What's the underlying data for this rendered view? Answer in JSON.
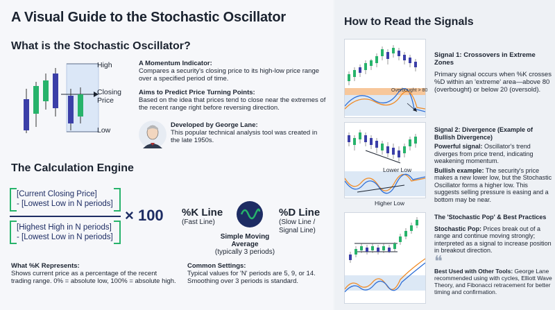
{
  "title": "A Visual Guide to the Stochastic Oscillator",
  "section_what": {
    "heading": "What is the Stochastic Oscillator?",
    "chart_labels": {
      "high": "High",
      "closing": "Closing\nPrice",
      "low": "Low"
    },
    "momentum": {
      "heading": "A Momentum Indicator:",
      "body": "Compares a security's closing price to its high-low price range over a specified period of time."
    },
    "aims": {
      "heading": "Aims to Predict Price Turning Points:",
      "body": "Based on the idea that prices tend to close near the extremes of the recent range right before reversing direction."
    },
    "developer": {
      "heading": "Developed by George Lane:",
      "body": "This popular technical analysis tool was created in the late 1950s."
    }
  },
  "section_calc": {
    "heading": "The Calculation Engine",
    "numerator": "[Current Closing Price]\n- [Lowest Low in N periods]",
    "denominator": "[Highest High in N periods]\n- [Lowest Low in N periods]",
    "multiplier": "× 100",
    "k_line": {
      "title": "%K Line",
      "sub": "(Fast Line)"
    },
    "d_line": {
      "title": "%D Line",
      "sub": "(Slow Line /\nSignal Line)"
    },
    "sma": {
      "title": "Simple Moving Average",
      "sub": "(typically 3 periods)"
    },
    "what_k": {
      "heading": "What %K Represents:",
      "body": "Shows current price as a percentage of the recent trading range. 0% = absolute low, 100% = absolute high."
    },
    "settings": {
      "heading": "Common Settings:",
      "body": "Typical values for 'N' periods are 5, 9, or 14. Smoothing over 3 periods is standard."
    }
  },
  "section_read": {
    "heading": "How to Read the Signals",
    "signal1": {
      "title": "Signal 1: Crossovers in Extreme Zones",
      "body": "Primary signal occurs when %K crosses %D within an 'extreme' area—above 80 (overbought) or below 20 (oversold).",
      "chart_label": "Overbought > 80"
    },
    "signal2": {
      "title": "Signal 2: Divergence (Example of Bullish Divergence)",
      "p1_bold": "Powerful signal:",
      "p1": " Oscillator's trend diverges from price trend, indicating weakening momentum.",
      "p2_bold": "Bullish example:",
      "p2": " The security's price makes a new lower low, but the Stochastic Oscillator forms a higher low. This suggests selling pressure is easing and a bottom may be near.",
      "label_lower": "Lower Low",
      "label_higher": "Higher Low"
    },
    "signal3": {
      "title": "The 'Stochastic Pop' & Best Practices",
      "p1_bold": "Stochastic Pop:",
      "p1": " Prices break out of a range and continue moving strongly; interpreted as a signal to increase position in breakout direction.",
      "quote_bold": "Best Used with Other Tools:",
      "quote": " George Lane recommended using with cycles, Elliott Wave Theory, and Fibonacci retracement for better timing and confirmation."
    }
  },
  "colors": {
    "accent_green": "#27b36b",
    "navy": "#1d2c63",
    "candle_purple": "#3b3fa8",
    "orange": "#f08a24",
    "blue_line": "#2f6fd6"
  }
}
